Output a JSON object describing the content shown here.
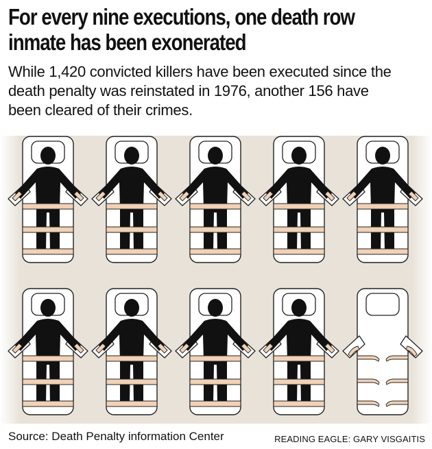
{
  "headline": {
    "line1": "For every nine executions, one death row",
    "line2": "inmate has been exonerated"
  },
  "subhead": {
    "line1": "While 1,420 convicted killers have been executed since the",
    "line2": "death penalty was reinstated in 1976, another 156 have",
    "line3": "been cleared of their crimes."
  },
  "graphic": {
    "rows": 2,
    "columns": 5,
    "executed_count": 9,
    "exonerated_count": 1,
    "colors": {
      "background": "#e8e2d8",
      "gurney": "#ffffff",
      "outline": "#222222",
      "strap": "#f1d2b6",
      "figure": "#111111"
    }
  },
  "footer": {
    "source": "Source: Death Penalty information Center",
    "credit": "READING EAGLE: GARY VISGAITIS"
  }
}
